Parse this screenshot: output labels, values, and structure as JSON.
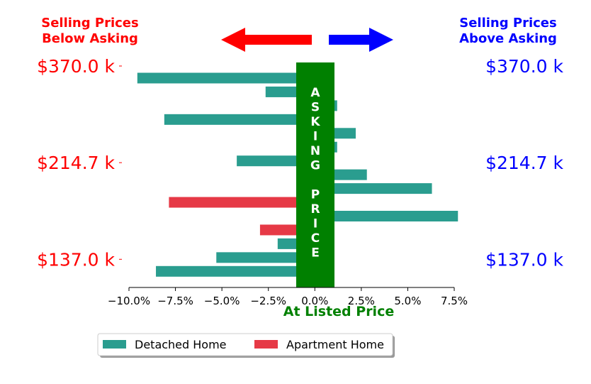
{
  "chart_data": {
    "type": "bar",
    "orientation": "horizontal",
    "header_left": [
      "Selling Prices",
      "Below Asking"
    ],
    "header_right": [
      "Selling Prices",
      "Above Asking"
    ],
    "band_text": "ASKING PRICE",
    "xlabel": "At Listed Price",
    "xlim": [
      -0.1,
      0.075
    ],
    "xticks": [
      -0.1,
      -0.075,
      -0.05,
      -0.025,
      0.0,
      0.025,
      0.05,
      0.075
    ],
    "xtick_labels": [
      "−10.0%",
      "−7.5%",
      "−5.0%",
      "−2.5%",
      "0.0%",
      "2.5%",
      "5.0%",
      "7.5%"
    ],
    "yticks": [
      {
        "label": "$370.0 k",
        "row": 0
      },
      {
        "label": "$214.7 k",
        "row": 7
      },
      {
        "label": "$137.0 k",
        "row": 14
      }
    ],
    "legend_placement": "bottom-center",
    "series": [
      {
        "name": "Detached Home",
        "color": "#2a9d8f"
      },
      {
        "name": "Apartment Home",
        "color": "#e63946"
      }
    ],
    "rows": [
      {
        "value": -0.0955,
        "series": 0
      },
      {
        "value": -0.0265,
        "series": 0
      },
      {
        "value": 0.012,
        "series": 0
      },
      {
        "value": -0.081,
        "series": 0
      },
      {
        "value": 0.022,
        "series": 0
      },
      {
        "value": 0.012,
        "series": 0
      },
      {
        "value": -0.042,
        "series": 0
      },
      {
        "value": 0.028,
        "series": 0
      },
      {
        "value": 0.063,
        "series": 0
      },
      {
        "value": -0.0785,
        "series": 1
      },
      {
        "value": 0.077,
        "series": 0
      },
      {
        "value": -0.0295,
        "series": 1
      },
      {
        "value": -0.02,
        "series": 0
      },
      {
        "value": -0.053,
        "series": 0
      },
      {
        "value": -0.0855,
        "series": 0
      }
    ],
    "colors": {
      "below": "#ff0000",
      "above": "#0000ff",
      "band": "#008000",
      "band_text": "#ffffff"
    }
  }
}
